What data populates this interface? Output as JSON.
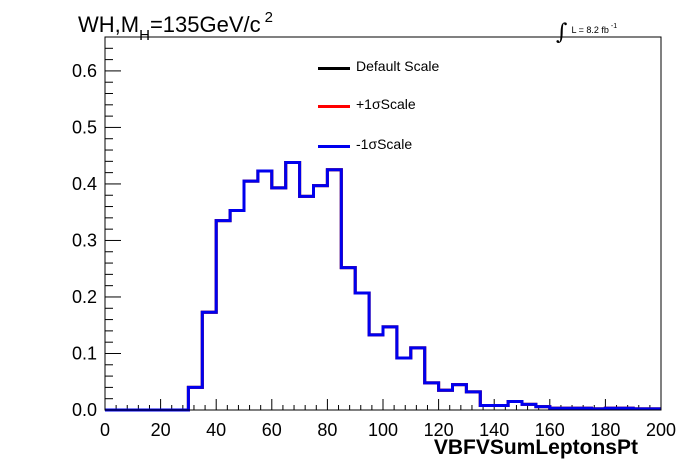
{
  "header": {
    "title_prefix": "WH,M",
    "title_sub": "H",
    "title_mass": "=135GeV/c",
    "title_sup": "2",
    "lumi_text": "L = 8.2 fb",
    "lumi_sup": "-1"
  },
  "chart_data": {
    "type": "line",
    "xlabel": "VBFVSumLeptonsPt",
    "ylabel": "",
    "xlim": [
      0,
      200
    ],
    "ylim": [
      0,
      0.66
    ],
    "xticks": [
      "0",
      "20",
      "40",
      "60",
      "80",
      "100",
      "120",
      "140",
      "160",
      "180",
      "200"
    ],
    "yticks": [
      "0.0",
      "0.1",
      "0.2",
      "0.3",
      "0.4",
      "0.5",
      "0.6"
    ],
    "grid": false,
    "legend_position": "top-center",
    "bin_width": 5,
    "x": [
      0,
      5,
      10,
      15,
      20,
      25,
      30,
      35,
      40,
      45,
      50,
      55,
      60,
      65,
      70,
      75,
      80,
      85,
      90,
      95,
      100,
      105,
      110,
      115,
      120,
      125,
      130,
      135,
      140,
      145,
      150,
      155,
      160,
      165,
      170,
      175,
      180,
      185,
      190,
      195
    ],
    "series": [
      {
        "name": "Default Scale",
        "color": "#000000",
        "values": [
          0,
          0,
          0,
          0,
          0,
          0,
          0.04,
          0.173,
          0.335,
          0.353,
          0.405,
          0.423,
          0.393,
          0.438,
          0.378,
          0.397,
          0.425,
          0.252,
          0.207,
          0.133,
          0.147,
          0.092,
          0.11,
          0.048,
          0.035,
          0.045,
          0.032,
          0.008,
          0.008,
          0.015,
          0.01,
          0.006,
          0.003,
          0.003,
          0.003,
          0.002,
          0.003,
          0.003,
          0.002,
          0.002
        ]
      },
      {
        "name": "+1σScale",
        "color": "#ff0000",
        "values": [
          0,
          0,
          0,
          0,
          0,
          0,
          0.04,
          0.173,
          0.335,
          0.353,
          0.405,
          0.423,
          0.393,
          0.438,
          0.378,
          0.397,
          0.425,
          0.252,
          0.207,
          0.133,
          0.147,
          0.092,
          0.11,
          0.048,
          0.035,
          0.045,
          0.032,
          0.008,
          0.008,
          0.015,
          0.01,
          0.006,
          0.003,
          0.003,
          0.003,
          0.002,
          0.003,
          0.003,
          0.002,
          0.002
        ]
      },
      {
        "name": "-1σScale",
        "color": "#0000ee",
        "values": [
          0,
          0,
          0,
          0,
          0,
          0,
          0.04,
          0.173,
          0.335,
          0.353,
          0.405,
          0.423,
          0.393,
          0.438,
          0.378,
          0.397,
          0.425,
          0.252,
          0.207,
          0.133,
          0.147,
          0.092,
          0.11,
          0.048,
          0.035,
          0.045,
          0.032,
          0.008,
          0.008,
          0.015,
          0.01,
          0.006,
          0.003,
          0.003,
          0.003,
          0.002,
          0.003,
          0.003,
          0.002,
          0.002
        ]
      }
    ]
  }
}
